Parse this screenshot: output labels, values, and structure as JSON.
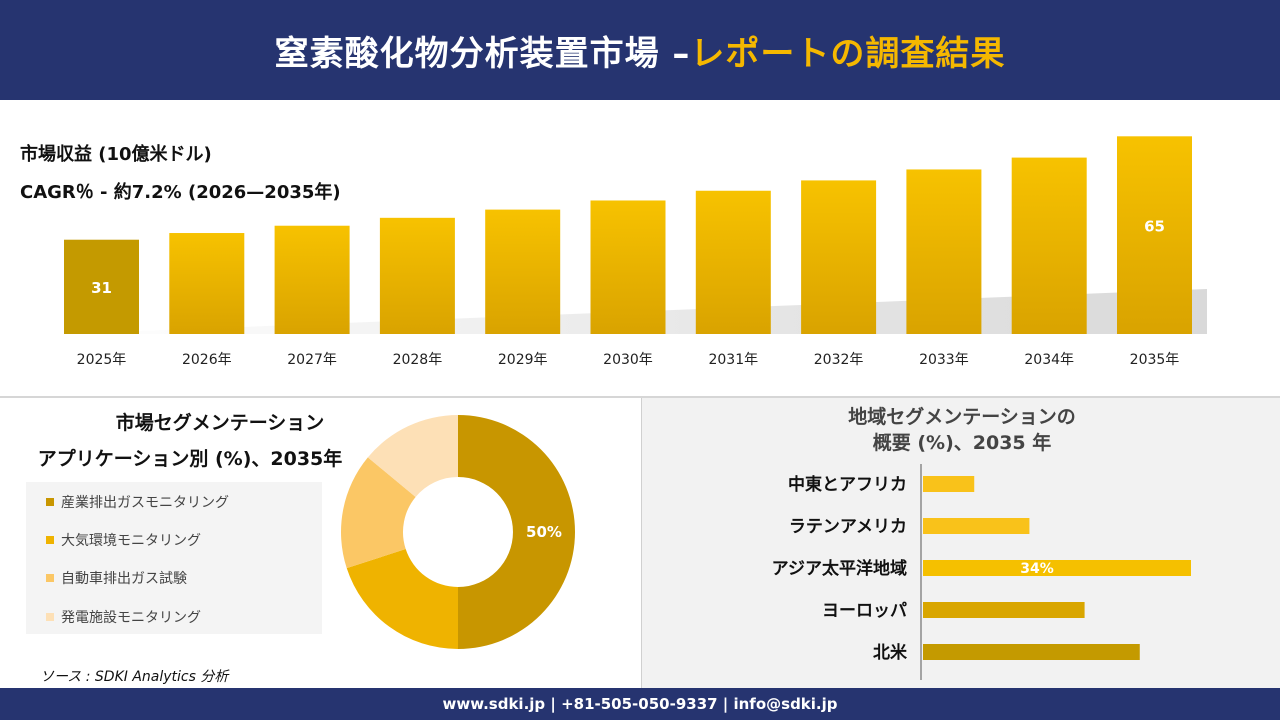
{
  "header": {
    "title_main": "窒素酸化物分析装置市場 –",
    "title_accent": "レポートの調査結果"
  },
  "metrics": {
    "revenue_label": "市場収益 (10億米ドル)",
    "cagr_label": "CAGR％ - 約7.2% (2026—2035年)"
  },
  "colors": {
    "navy": "#263470",
    "gold_dark": "#c49a00",
    "gold": "#e0a800",
    "gold_bright": "#f5c000",
    "donut_1": "#c89600",
    "donut_2": "#efb300",
    "donut_3": "#fbc765",
    "donut_4": "#fde0b6",
    "hbar": "#f5c000"
  },
  "chart_data": [
    {
      "type": "bar",
      "categories": [
        "2025年",
        "2026年",
        "2027年",
        "2028年",
        "2029年",
        "2030年",
        "2031年",
        "2032年",
        "2033年",
        "2034年",
        "2035年"
      ],
      "values": [
        31,
        33.2,
        35.6,
        38.2,
        40.9,
        43.9,
        47.1,
        50.5,
        54.1,
        58.0,
        65
      ],
      "labeled": {
        "0": "31",
        "10": "65"
      },
      "ylim": [
        0,
        70
      ]
    },
    {
      "type": "pie",
      "title_line1": "市場セグメンテーション",
      "title_line2": "アプリケーション別 (%)、2035年",
      "categories": [
        "産業排出ガスモニタリング",
        "大気環境モニタリング",
        "自動車排出ガス試験",
        "発電施設モニタリング"
      ],
      "values": [
        50,
        20,
        16,
        14
      ],
      "labels": [
        "50%",
        "",
        "",
        ""
      ]
    },
    {
      "type": "bar",
      "orientation": "horizontal",
      "title_line1": "地域セグメンテーションの",
      "title_line2": "概要 (%)、2035 年",
      "categories": [
        "中東とアフリカ",
        "ラテンアメリカ",
        "アジア太平洋地域",
        "ヨーロッパ",
        "北米"
      ],
      "values": [
        6.5,
        13.5,
        34,
        20.5,
        27.5
      ],
      "labels": [
        "",
        "",
        "34%",
        "",
        ""
      ],
      "xlim": [
        0,
        40
      ]
    }
  ],
  "source": "ソース : SDKI Analytics 分析",
  "footer": "www.sdki.jp | +81-505-050-9337 | info@sdki.jp"
}
